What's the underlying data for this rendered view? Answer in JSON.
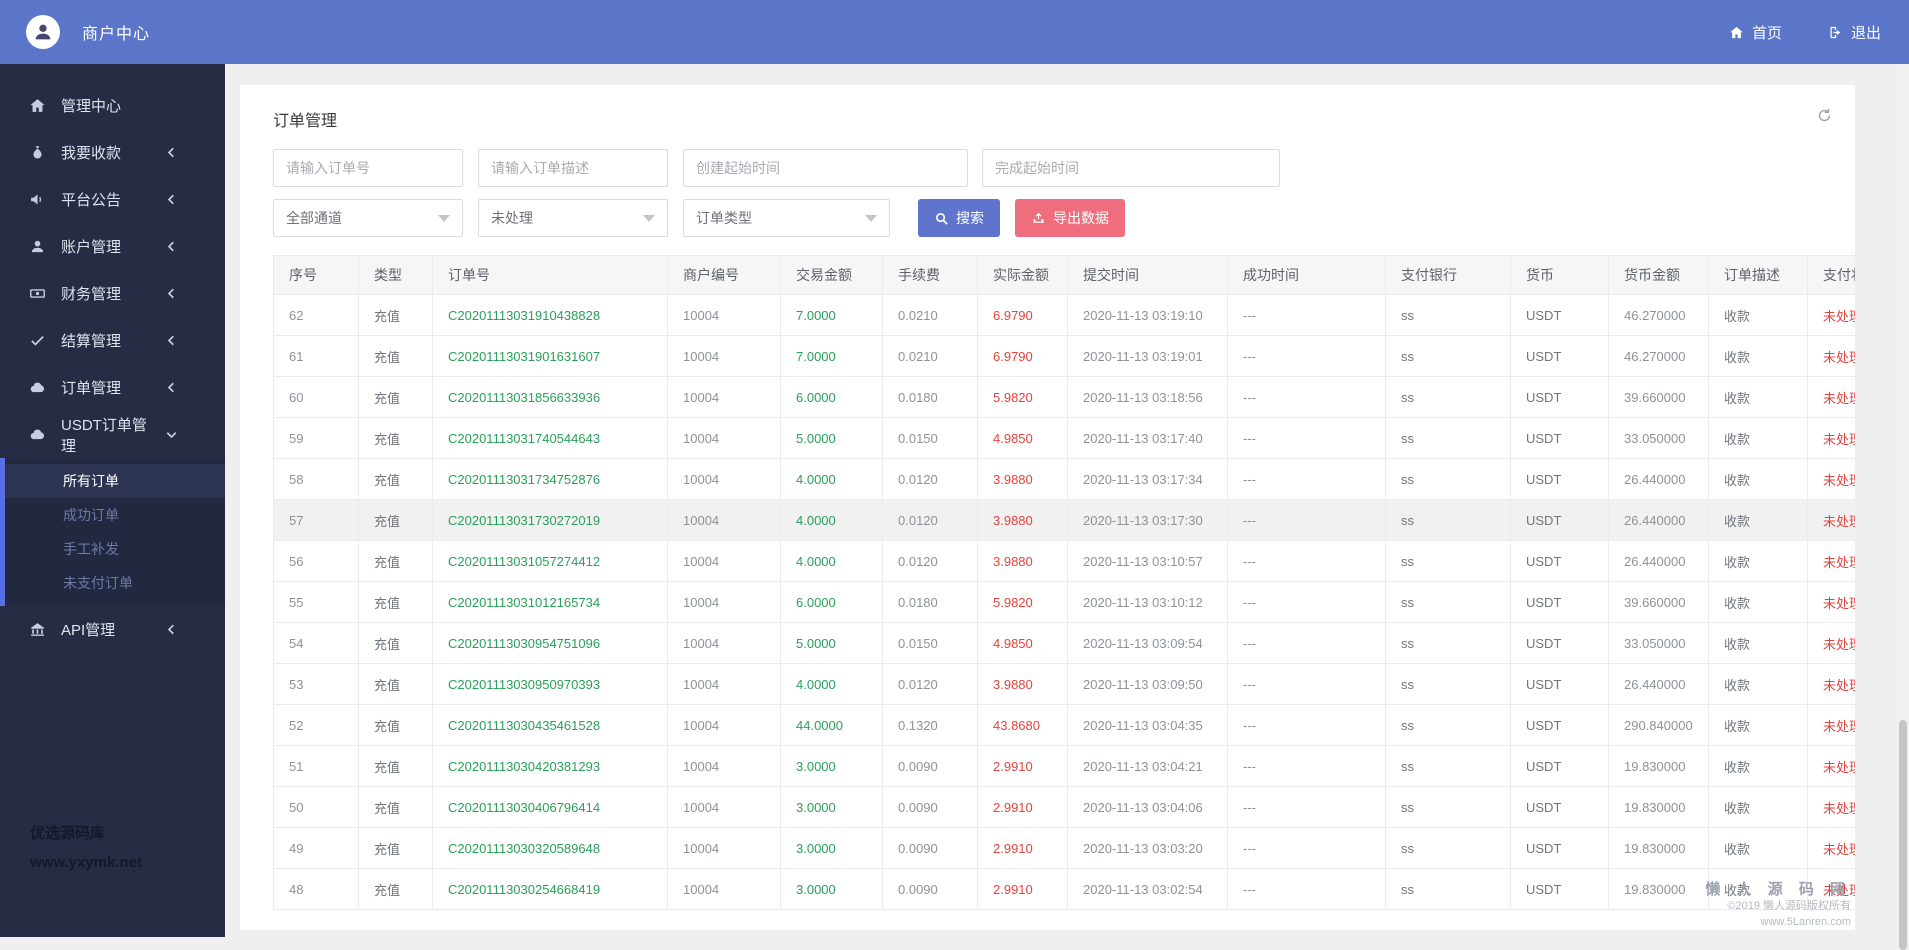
{
  "topbar": {
    "brand": "商户中心",
    "home_label": "首页",
    "logout_label": "退出"
  },
  "sidebar": {
    "items": [
      {
        "label": "管理中心",
        "icon": "home"
      },
      {
        "label": "我要收款",
        "icon": "collect",
        "chevron": "left"
      },
      {
        "label": "平台公告",
        "icon": "announcement",
        "chevron": "left"
      },
      {
        "label": "账户管理",
        "icon": "user",
        "chevron": "left"
      },
      {
        "label": "财务管理",
        "icon": "finance",
        "chevron": "left"
      },
      {
        "label": "结算管理",
        "icon": "check",
        "chevron": "left"
      },
      {
        "label": "订单管理",
        "icon": "cloud",
        "chevron": "left"
      },
      {
        "label": "USDT订单管理",
        "icon": "cloud",
        "chevron": "down",
        "active": true,
        "children": [
          {
            "label": "所有订单",
            "active": true
          },
          {
            "label": "成功订单"
          },
          {
            "label": "手工补发"
          },
          {
            "label": "未支付订单"
          }
        ]
      },
      {
        "label": "API管理",
        "icon": "bank",
        "chevron": "left"
      }
    ],
    "watermark_line1": "优选源码库",
    "watermark_line2": "www.yxymk.net"
  },
  "page": {
    "title": "订单管理"
  },
  "filters": {
    "order_no_placeholder": "请输入订单号",
    "order_desc_placeholder": "请输入订单描述",
    "create_time_placeholder": "创建起始时间",
    "finish_time_placeholder": "完成起始时间",
    "channel_selected": "全部通道",
    "status_selected": "未处理",
    "type_selected": "订单类型",
    "search_label": "搜索",
    "export_label": "导出数据"
  },
  "table": {
    "headers": [
      "序号",
      "类型",
      "订单号",
      "商户编号",
      "交易金额",
      "手续费",
      "实际金额",
      "提交时间",
      "成功时间",
      "支付银行",
      "货币",
      "货币金额",
      "订单描述",
      "支付状态"
    ],
    "rows": [
      {
        "cells": [
          "62",
          "充值",
          "C20201113031910438828",
          "10004",
          "7.0000",
          "0.0210",
          "6.9790",
          "2020-11-13 03:19:10",
          "---",
          "ss",
          "USDT",
          "46.270000",
          "收款",
          "未处理"
        ]
      },
      {
        "cells": [
          "61",
          "充值",
          "C20201113031901631607",
          "10004",
          "7.0000",
          "0.0210",
          "6.9790",
          "2020-11-13 03:19:01",
          "---",
          "ss",
          "USDT",
          "46.270000",
          "收款",
          "未处理"
        ]
      },
      {
        "cells": [
          "60",
          "充值",
          "C20201113031856633936",
          "10004",
          "6.0000",
          "0.0180",
          "5.9820",
          "2020-11-13 03:18:56",
          "---",
          "ss",
          "USDT",
          "39.660000",
          "收款",
          "未处理"
        ]
      },
      {
        "cells": [
          "59",
          "充值",
          "C20201113031740544643",
          "10004",
          "5.0000",
          "0.0150",
          "4.9850",
          "2020-11-13 03:17:40",
          "---",
          "ss",
          "USDT",
          "33.050000",
          "收款",
          "未处理"
        ]
      },
      {
        "cells": [
          "58",
          "充值",
          "C20201113031734752876",
          "10004",
          "4.0000",
          "0.0120",
          "3.9880",
          "2020-11-13 03:17:34",
          "---",
          "ss",
          "USDT",
          "26.440000",
          "收款",
          "未处理"
        ]
      },
      {
        "cells": [
          "57",
          "充值",
          "C20201113031730272019",
          "10004",
          "4.0000",
          "0.0120",
          "3.9880",
          "2020-11-13 03:17:30",
          "---",
          "ss",
          "USDT",
          "26.440000",
          "收款",
          "未处理"
        ],
        "highlighted": true
      },
      {
        "cells": [
          "56",
          "充值",
          "C20201113031057274412",
          "10004",
          "4.0000",
          "0.0120",
          "3.9880",
          "2020-11-13 03:10:57",
          "---",
          "ss",
          "USDT",
          "26.440000",
          "收款",
          "未处理"
        ]
      },
      {
        "cells": [
          "55",
          "充值",
          "C20201113031012165734",
          "10004",
          "6.0000",
          "0.0180",
          "5.9820",
          "2020-11-13 03:10:12",
          "---",
          "ss",
          "USDT",
          "39.660000",
          "收款",
          "未处理"
        ]
      },
      {
        "cells": [
          "54",
          "充值",
          "C20201113030954751096",
          "10004",
          "5.0000",
          "0.0150",
          "4.9850",
          "2020-11-13 03:09:54",
          "---",
          "ss",
          "USDT",
          "33.050000",
          "收款",
          "未处理"
        ]
      },
      {
        "cells": [
          "53",
          "充值",
          "C20201113030950970393",
          "10004",
          "4.0000",
          "0.0120",
          "3.9880",
          "2020-11-13 03:09:50",
          "---",
          "ss",
          "USDT",
          "26.440000",
          "收款",
          "未处理"
        ]
      },
      {
        "cells": [
          "52",
          "充值",
          "C20201113030435461528",
          "10004",
          "44.0000",
          "0.1320",
          "43.8680",
          "2020-11-13 03:04:35",
          "---",
          "ss",
          "USDT",
          "290.840000",
          "收款",
          "未处理"
        ]
      },
      {
        "cells": [
          "51",
          "充值",
          "C20201113030420381293",
          "10004",
          "3.0000",
          "0.0090",
          "2.9910",
          "2020-11-13 03:04:21",
          "---",
          "ss",
          "USDT",
          "19.830000",
          "收款",
          "未处理"
        ]
      },
      {
        "cells": [
          "50",
          "充值",
          "C20201113030406796414",
          "10004",
          "3.0000",
          "0.0090",
          "2.9910",
          "2020-11-13 03:04:06",
          "---",
          "ss",
          "USDT",
          "19.830000",
          "收款",
          "未处理"
        ]
      },
      {
        "cells": [
          "49",
          "充值",
          "C20201113030320589648",
          "10004",
          "3.0000",
          "0.0090",
          "2.9910",
          "2020-11-13 03:03:20",
          "---",
          "ss",
          "USDT",
          "19.830000",
          "收款",
          "未处理"
        ]
      },
      {
        "cells": [
          "48",
          "充值",
          "C20201113030254668419",
          "10004",
          "3.0000",
          "0.0090",
          "2.9910",
          "2020-11-13 03:02:54",
          "---",
          "ss",
          "USDT",
          "19.830000",
          "收款",
          "未处理"
        ]
      }
    ]
  },
  "footer": {
    "brand": "懒 人 源 码 网",
    "copyright": "©2019 懒人源码版权所有",
    "site": "www.5Lanren.com"
  },
  "colors": {
    "topbar": "#5b76c9",
    "sidebar": "#262c44",
    "submenu_accent": "#5b6de4",
    "search_button": "#5f75cd",
    "export_button": "#ee6e7d",
    "amount_green": "#2aa05a",
    "amount_red": "#e5433e"
  }
}
